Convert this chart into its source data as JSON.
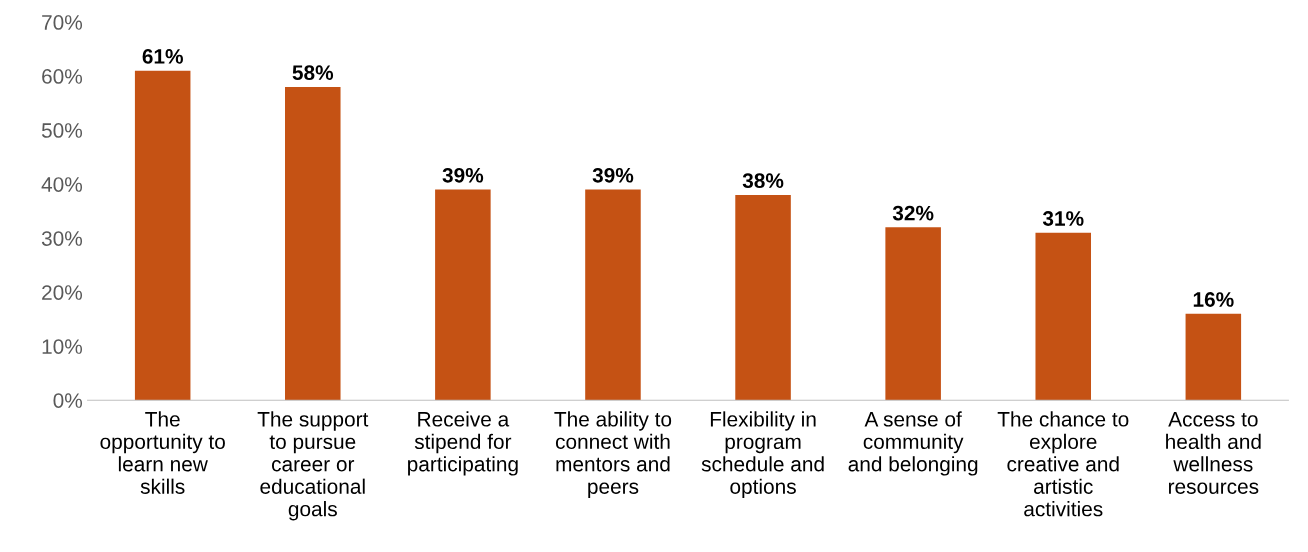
{
  "chart_data": {
    "type": "bar",
    "categories": [
      "The\nopportunity to\nlearn new\nskills",
      "The support\nto pursue\ncareer or\neducational\ngoals",
      "Receive a\nstipend for\nparticipating",
      "The ability to\nconnect with\nmentors and\npeers",
      "Flexibility in\nprogram\nschedule and\noptions",
      "A sense of\ncommunity\nand belonging",
      "The chance to\nexplore\ncreative and\nartistic\nactivities",
      "Access to\nhealth and\nwellness\nresources"
    ],
    "values": [
      61,
      58,
      39,
      39,
      38,
      32,
      31,
      16
    ],
    "value_labels": [
      "61%",
      "58%",
      "39%",
      "39%",
      "38%",
      "32%",
      "31%",
      "16%"
    ],
    "color": "#c55214",
    "ylim": [
      0,
      70
    ],
    "yticks": [
      {
        "value": 0,
        "label": "0%"
      },
      {
        "value": 10,
        "label": "10%"
      },
      {
        "value": 20,
        "label": "20%"
      },
      {
        "value": 30,
        "label": "30%"
      },
      {
        "value": 40,
        "label": "40%"
      },
      {
        "value": 50,
        "label": "50%"
      },
      {
        "value": 60,
        "label": "60%"
      },
      {
        "value": 70,
        "label": "70%"
      }
    ],
    "grid": false,
    "legend": false
  }
}
